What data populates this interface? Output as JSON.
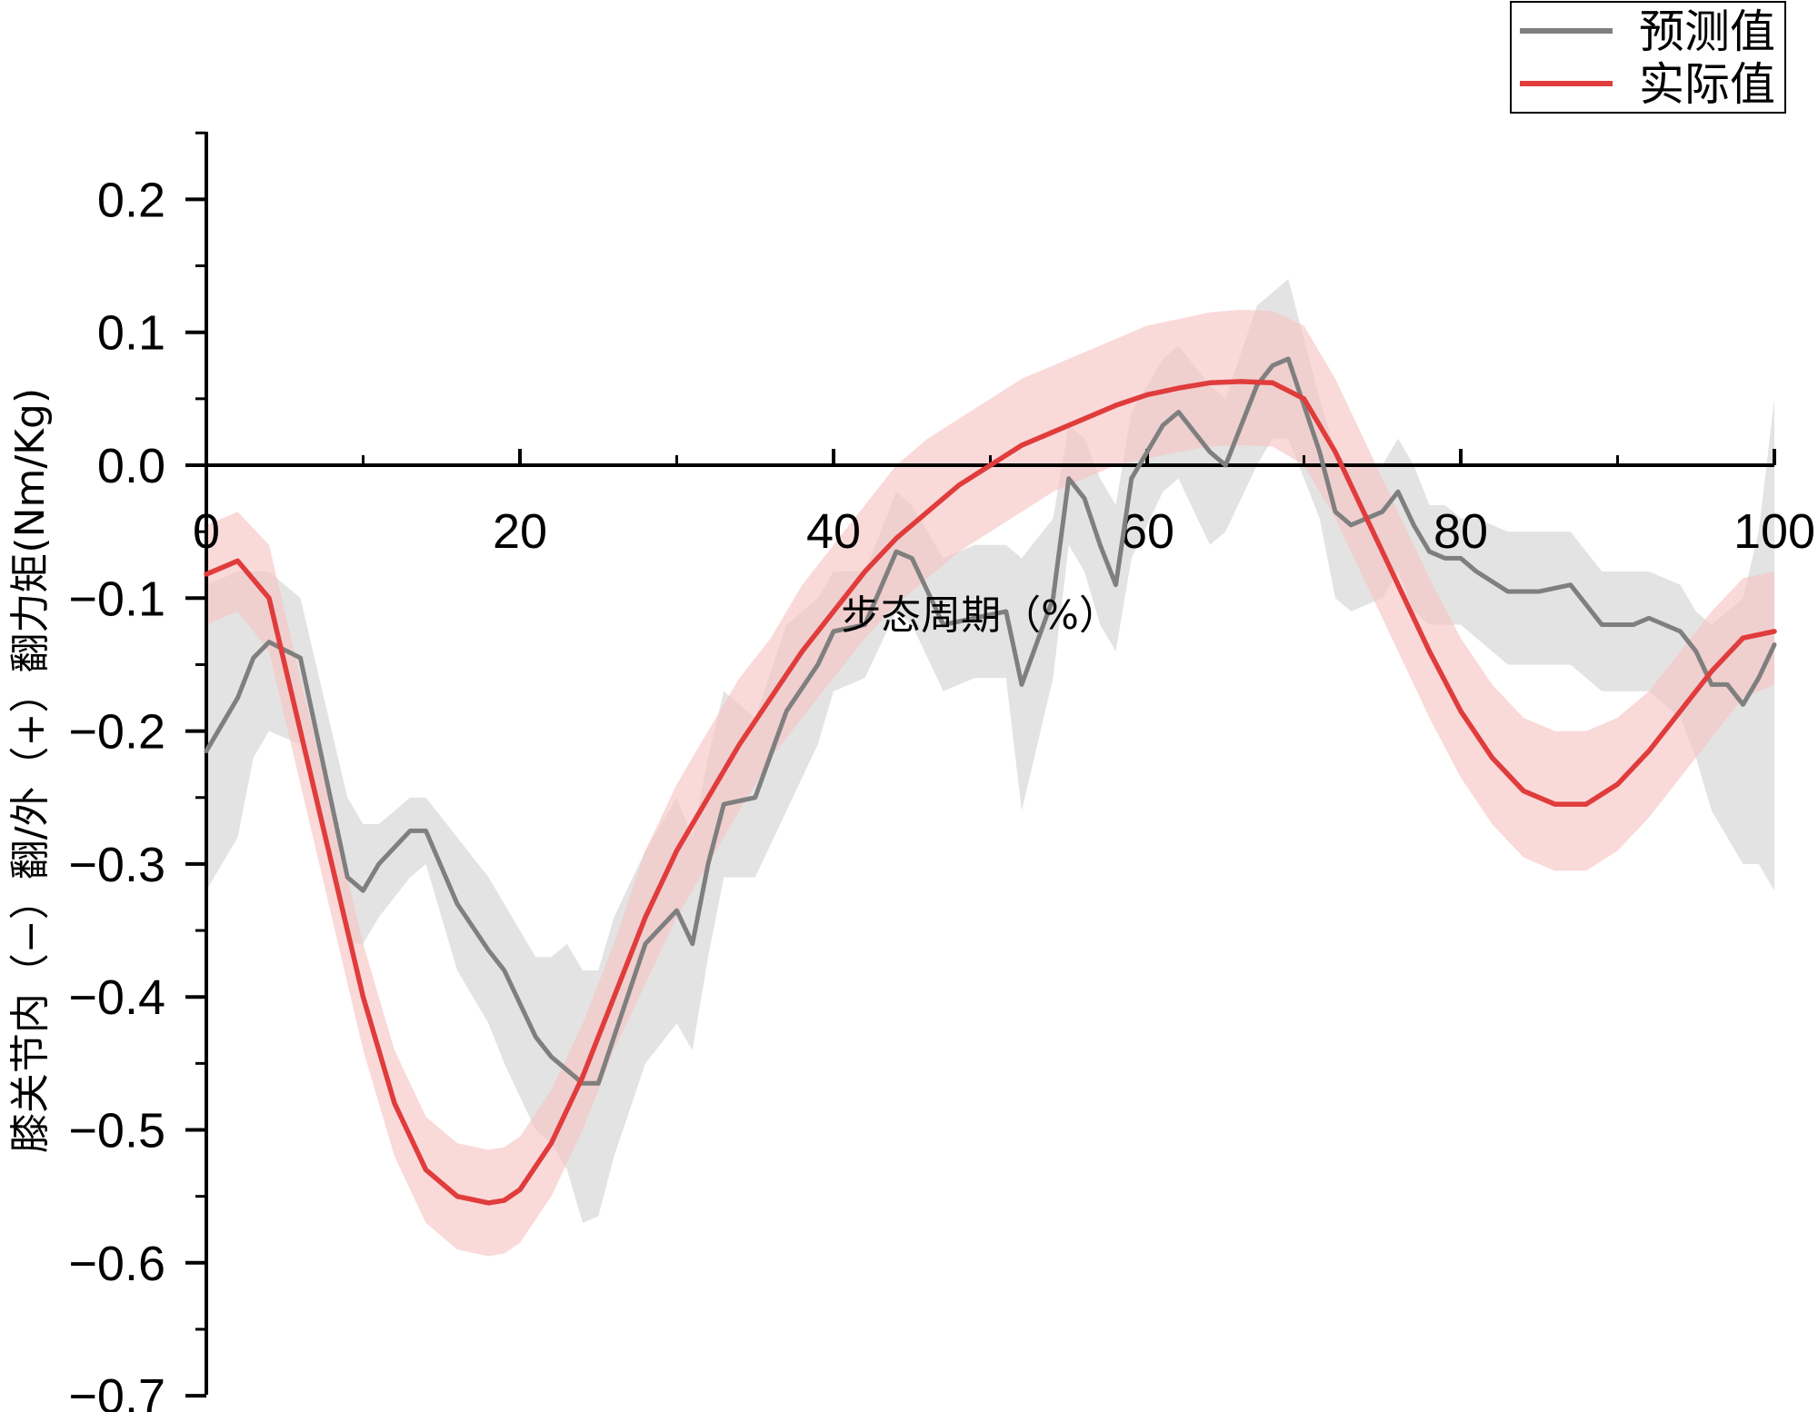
{
  "chart_data": {
    "type": "line",
    "xlabel": "步态周期（%）",
    "ylabel": "膝关节内（−）翻/外（+）翻力矩(Nm/Kg)",
    "xlim": [
      0,
      100
    ],
    "ylim": [
      -0.7,
      0.25
    ],
    "x_ticks": [
      0,
      20,
      40,
      60,
      80,
      100
    ],
    "x_tick_labels": [
      "0",
      "20",
      "40",
      "60",
      "80",
      "100"
    ],
    "y_ticks": [
      0.2,
      0.1,
      0.0,
      -0.1,
      -0.2,
      -0.3,
      -0.4,
      -0.5,
      -0.6,
      -0.7
    ],
    "y_tick_labels": [
      "0.2",
      "0.1",
      "0.0",
      "−0.1",
      "−0.2",
      "−0.3",
      "−0.4",
      "−0.5",
      "−0.6",
      "−0.7"
    ],
    "grid": false,
    "legend_position": "top-right",
    "series": [
      {
        "name": "预测值",
        "color": "#7f7f7f",
        "band_color": "#d9d9d9",
        "x": [
          0,
          2,
          3,
          4,
          6,
          9,
          10,
          11,
          13,
          14,
          16,
          18,
          19,
          21,
          22,
          23,
          24,
          25,
          26,
          28,
          30,
          31,
          32,
          33,
          35,
          37,
          39,
          40,
          42,
          44,
          45,
          47,
          49,
          51,
          52,
          54,
          55,
          56,
          57,
          58,
          59,
          61,
          62,
          64,
          65,
          67,
          68,
          69,
          71,
          72,
          73,
          75,
          76,
          77,
          78,
          79,
          80,
          81,
          83,
          85,
          87,
          89,
          90,
          91,
          92,
          94,
          95,
          96,
          97,
          98,
          99,
          100
        ],
        "y": [
          -0.215,
          -0.175,
          -0.145,
          -0.133,
          -0.145,
          -0.31,
          -0.32,
          -0.3,
          -0.275,
          -0.275,
          -0.33,
          -0.365,
          -0.38,
          -0.43,
          -0.445,
          -0.455,
          -0.465,
          -0.465,
          -0.43,
          -0.36,
          -0.335,
          -0.36,
          -0.3,
          -0.255,
          -0.25,
          -0.185,
          -0.15,
          -0.125,
          -0.12,
          -0.065,
          -0.07,
          -0.12,
          -0.115,
          -0.11,
          -0.165,
          -0.1,
          -0.01,
          -0.025,
          -0.06,
          -0.09,
          -0.01,
          0.03,
          0.04,
          0.01,
          0.0,
          0.06,
          0.075,
          0.08,
          0.01,
          -0.035,
          -0.045,
          -0.035,
          -0.02,
          -0.045,
          -0.065,
          -0.07,
          -0.07,
          -0.08,
          -0.095,
          -0.095,
          -0.09,
          -0.12,
          -0.12,
          -0.12,
          -0.115,
          -0.125,
          -0.14,
          -0.165,
          -0.165,
          -0.18,
          -0.16,
          -0.135
        ],
        "lower": [
          -0.32,
          -0.28,
          -0.22,
          -0.2,
          -0.21,
          -0.36,
          -0.36,
          -0.34,
          -0.31,
          -0.3,
          -0.38,
          -0.42,
          -0.45,
          -0.5,
          -0.51,
          -0.53,
          -0.57,
          -0.565,
          -0.52,
          -0.45,
          -0.42,
          -0.44,
          -0.37,
          -0.31,
          -0.31,
          -0.26,
          -0.21,
          -0.17,
          -0.16,
          -0.11,
          -0.12,
          -0.17,
          -0.16,
          -0.16,
          -0.26,
          -0.16,
          -0.06,
          -0.08,
          -0.12,
          -0.14,
          -0.07,
          -0.02,
          -0.01,
          -0.06,
          -0.05,
          0.0,
          0.02,
          0.02,
          -0.04,
          -0.1,
          -0.11,
          -0.1,
          -0.08,
          -0.11,
          -0.12,
          -0.12,
          -0.12,
          -0.13,
          -0.15,
          -0.15,
          -0.15,
          -0.17,
          -0.17,
          -0.17,
          -0.17,
          -0.19,
          -0.22,
          -0.26,
          -0.28,
          -0.3,
          -0.3,
          -0.32
        ],
        "upper": [
          -0.09,
          -0.08,
          -0.08,
          -0.08,
          -0.1,
          -0.25,
          -0.27,
          -0.27,
          -0.25,
          -0.25,
          -0.28,
          -0.31,
          -0.33,
          -0.37,
          -0.37,
          -0.36,
          -0.38,
          -0.38,
          -0.34,
          -0.29,
          -0.25,
          -0.28,
          -0.22,
          -0.17,
          -0.19,
          -0.12,
          -0.1,
          -0.08,
          -0.08,
          -0.02,
          -0.03,
          -0.07,
          -0.06,
          -0.06,
          -0.07,
          -0.04,
          0.03,
          0.02,
          -0.01,
          -0.03,
          0.04,
          0.08,
          0.09,
          0.06,
          0.05,
          0.12,
          0.13,
          0.14,
          0.05,
          0.01,
          -0.0,
          0.0,
          0.02,
          -0.0,
          -0.03,
          -0.03,
          -0.04,
          -0.04,
          -0.05,
          -0.05,
          -0.05,
          -0.08,
          -0.08,
          -0.08,
          -0.08,
          -0.09,
          -0.11,
          -0.12,
          -0.11,
          -0.1,
          -0.05,
          0.05
        ]
      },
      {
        "name": "实际值",
        "color": "#e03c3c",
        "band_color": "#f7c5c5",
        "x": [
          0,
          2,
          4,
          6,
          8,
          10,
          12,
          14,
          16,
          18,
          19,
          20,
          22,
          24,
          26,
          28,
          30,
          32,
          34,
          36,
          38,
          40,
          42,
          44,
          46,
          48,
          50,
          52,
          54,
          56,
          58,
          60,
          62,
          64,
          66,
          68,
          70,
          72,
          74,
          76,
          78,
          80,
          82,
          84,
          86,
          88,
          90,
          92,
          94,
          96,
          98,
          100
        ],
        "y": [
          -0.082,
          -0.072,
          -0.1,
          -0.2,
          -0.3,
          -0.4,
          -0.48,
          -0.53,
          -0.55,
          -0.555,
          -0.553,
          -0.545,
          -0.51,
          -0.46,
          -0.4,
          -0.34,
          -0.29,
          -0.25,
          -0.21,
          -0.175,
          -0.14,
          -0.11,
          -0.08,
          -0.055,
          -0.035,
          -0.015,
          0.0,
          0.015,
          0.025,
          0.035,
          0.045,
          0.053,
          0.058,
          0.062,
          0.063,
          0.062,
          0.05,
          0.01,
          -0.04,
          -0.09,
          -0.14,
          -0.185,
          -0.22,
          -0.245,
          -0.255,
          -0.255,
          -0.24,
          -0.215,
          -0.185,
          -0.155,
          -0.13,
          -0.125
        ],
        "lower": [
          -0.12,
          -0.11,
          -0.14,
          -0.24,
          -0.34,
          -0.44,
          -0.52,
          -0.57,
          -0.59,
          -0.595,
          -0.593,
          -0.585,
          -0.55,
          -0.5,
          -0.44,
          -0.39,
          -0.34,
          -0.3,
          -0.26,
          -0.22,
          -0.19,
          -0.16,
          -0.13,
          -0.105,
          -0.085,
          -0.065,
          -0.05,
          -0.035,
          -0.02,
          -0.01,
          0.0,
          0.005,
          0.01,
          0.014,
          0.015,
          0.014,
          0.0,
          -0.04,
          -0.09,
          -0.14,
          -0.19,
          -0.235,
          -0.27,
          -0.295,
          -0.305,
          -0.305,
          -0.29,
          -0.265,
          -0.235,
          -0.205,
          -0.175,
          -0.165
        ],
        "upper": [
          -0.045,
          -0.035,
          -0.06,
          -0.16,
          -0.26,
          -0.36,
          -0.44,
          -0.49,
          -0.51,
          -0.515,
          -0.513,
          -0.505,
          -0.47,
          -0.42,
          -0.36,
          -0.29,
          -0.24,
          -0.2,
          -0.16,
          -0.13,
          -0.09,
          -0.06,
          -0.03,
          0.0,
          0.02,
          0.035,
          0.05,
          0.065,
          0.075,
          0.085,
          0.095,
          0.105,
          0.11,
          0.115,
          0.117,
          0.116,
          0.105,
          0.065,
          0.015,
          -0.035,
          -0.085,
          -0.13,
          -0.165,
          -0.19,
          -0.2,
          -0.2,
          -0.19,
          -0.17,
          -0.14,
          -0.11,
          -0.085,
          -0.08
        ]
      }
    ]
  }
}
